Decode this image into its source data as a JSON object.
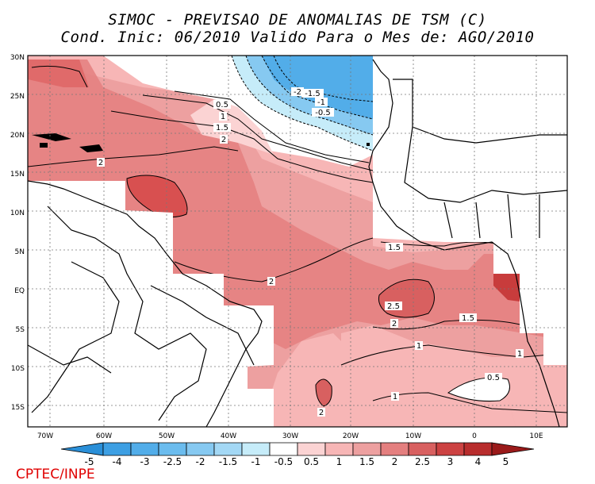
{
  "title_line1": "SIMOC - PREVISAO DE ANOMALIAS DE TSM (C)",
  "title_line2": "Cond. Inic: 06/2010   Valido Para o Mes de: AGO/2010",
  "credit": "CPTEC/INPE",
  "axes": {
    "lat_labels": [
      "30N",
      "25N",
      "20N",
      "15N",
      "10N",
      "5N",
      "EQ",
      "5S",
      "10S",
      "15S"
    ],
    "lon_labels": [
      "70W",
      "60W",
      "50W",
      "40W",
      "30W",
      "20W",
      "10W",
      "0",
      "10E"
    ]
  },
  "colorbar": {
    "labels": [
      "-5",
      "-4",
      "-3",
      "-2.5",
      "-2",
      "-1.5",
      "-1",
      "-0.5",
      "0.5",
      "1",
      "1.5",
      "2",
      "2.5",
      "3",
      "4",
      "5"
    ],
    "colors": [
      "#2a8fd8",
      "#3d9fe3",
      "#52ade9",
      "#6bbcee",
      "#86c9f1",
      "#a3d8f5",
      "#c6ecf9",
      "#ffffff",
      "#fbd3d3",
      "#f7b6b6",
      "#eda0a0",
      "#e47f7f",
      "#d86060",
      "#cc4242",
      "#b82d2d",
      "#9a1a1a"
    ]
  },
  "contour_labels": [
    {
      "text": "-2"
    },
    {
      "text": "-1.5"
    },
    {
      "text": "-1"
    },
    {
      "text": "-0.5"
    },
    {
      "text": "0.5"
    },
    {
      "text": "1"
    },
    {
      "text": "1.5"
    },
    {
      "text": "2"
    },
    {
      "text": "2"
    },
    {
      "text": "1.5"
    },
    {
      "text": "2"
    },
    {
      "text": "2.5"
    },
    {
      "text": "2"
    },
    {
      "text": "1.5"
    },
    {
      "text": "1"
    },
    {
      "text": "1"
    },
    {
      "text": "0.5"
    },
    {
      "text": "1"
    },
    {
      "text": "2"
    }
  ]
}
